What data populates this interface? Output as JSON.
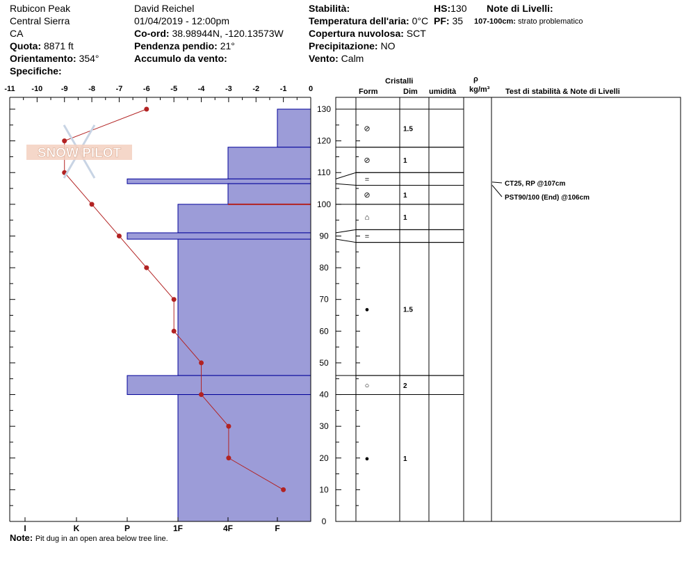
{
  "header": {
    "location": "Rubicon Peak",
    "range": "Central Sierra",
    "state": "CA",
    "elevation_label": "Quota:",
    "elevation_value": "8871 ft",
    "aspect_label": "Orientamento:",
    "aspect_value": "354°",
    "specifics_label": "Specifiche:",
    "observer": "David Reichel",
    "datetime": "01/04/2019 - 12:00pm",
    "coords_label": "Co-ord:",
    "coords_value": "38.98944N, -120.13573W",
    "slope_label": "Pendenza pendio:",
    "slope_value": "21°",
    "wind_loading_label": "Accumulo da vento:",
    "stability_label": "Stabilità:",
    "air_temp_label": "Temperatura dell'aria:",
    "air_temp_value": "0°C",
    "sky_label": "Copertura nuvolosa:",
    "sky_value": "SCT",
    "precip_label": "Precipitazione:",
    "precip_value": "NO",
    "wind_label": "Vento:",
    "wind_value": "Calm",
    "hs_label": "HS:",
    "hs_value": "130",
    "pf_label": "PF:",
    "pf_value": "35",
    "layer_notes_label": "Note di Livelli:",
    "layer_note_range": "107-100cm:",
    "layer_note_text": "strato problematico"
  },
  "table_headers": {
    "crystals": "Cristalli",
    "form": "Form",
    "size": "Dim",
    "moisture": "umidità",
    "rho": "ρ",
    "density_unit": "kg/m³",
    "tests": "Test di stabilità & Note di Livelli"
  },
  "footer": {
    "note_label": "Note:",
    "note_text": "Pit dug in an open area below tree line."
  },
  "logo_text": "SNOW PILOT",
  "colors": {
    "hardness_fill": "#9c9cd8",
    "hardness_stroke": "#000099",
    "temp_line": "#b22222",
    "weak_layer": "#b22222"
  },
  "chart_data": {
    "type": "snow-profile",
    "temperature_axis": {
      "range": [
        -11,
        0
      ],
      "ticks": [
        "-11",
        "-10",
        "-9",
        "-8",
        "-7",
        "-6",
        "-5",
        "-4",
        "-3",
        "-2",
        "-1",
        "0"
      ]
    },
    "height_axis": {
      "range": [
        0,
        130
      ],
      "ticks": [
        "0",
        "10",
        "20",
        "30",
        "40",
        "50",
        "60",
        "70",
        "80",
        "90",
        "100",
        "110",
        "120",
        "130"
      ]
    },
    "hardness_axis": {
      "labels": [
        "I",
        "K",
        "P",
        "1F",
        "4F",
        "F"
      ],
      "hardness_scale_note": "F at right, I at left"
    },
    "temperature_profile": [
      {
        "h": 130,
        "t": -6
      },
      {
        "h": 120,
        "t": -9
      },
      {
        "h": 110,
        "t": -9
      },
      {
        "h": 100,
        "t": -8
      },
      {
        "h": 90,
        "t": -7
      },
      {
        "h": 80,
        "t": -6
      },
      {
        "h": 70,
        "t": -5
      },
      {
        "h": 60,
        "t": -5
      },
      {
        "h": 50,
        "t": -4
      },
      {
        "h": 40,
        "t": -4
      },
      {
        "h": 30,
        "t": -3
      },
      {
        "h": 20,
        "t": -3
      },
      {
        "h": 10,
        "t": -1
      }
    ],
    "hardness_layers": [
      {
        "top": 130,
        "bottom": 118,
        "hardness": "F"
      },
      {
        "top": 118,
        "bottom": 108,
        "hardness": "4F"
      },
      {
        "top": 108,
        "bottom": 106.5,
        "hardness": "P"
      },
      {
        "top": 106.5,
        "bottom": 100,
        "hardness": "4F"
      },
      {
        "top": 100,
        "bottom": 91,
        "hardness": "1F"
      },
      {
        "top": 91,
        "bottom": 89,
        "hardness": "P"
      },
      {
        "top": 89,
        "bottom": 46,
        "hardness": "1F"
      },
      {
        "top": 46,
        "bottom": 40,
        "hardness": "P"
      },
      {
        "top": 40,
        "bottom": 0,
        "hardness": "1F"
      }
    ],
    "weak_layer_at": 100,
    "crystal_rows": [
      {
        "top": 130,
        "bottom": 118,
        "form": "⊘",
        "size": "1.5"
      },
      {
        "top": 118,
        "bottom": 110,
        "form": "⊘",
        "size": "1"
      },
      {
        "top": 110,
        "bottom": 106,
        "form": "=",
        "size": ""
      },
      {
        "top": 106,
        "bottom": 100,
        "form": "⊘",
        "size": "1"
      },
      {
        "top": 100,
        "bottom": 92,
        "form": "⌂",
        "size": "1"
      },
      {
        "top": 92,
        "bottom": 88,
        "form": "=",
        "size": ""
      },
      {
        "top": 88,
        "bottom": 46,
        "form": "●",
        "size": "1.5"
      },
      {
        "top": 46,
        "bottom": 40,
        "form": "○",
        "size": "2"
      },
      {
        "top": 40,
        "bottom": 0,
        "form": "●",
        "size": "1"
      }
    ],
    "stability_tests": [
      {
        "text": "CT25, RP @107cm",
        "h": 107
      },
      {
        "text": "PST90/100 (End) @106cm",
        "h": 106
      }
    ]
  }
}
